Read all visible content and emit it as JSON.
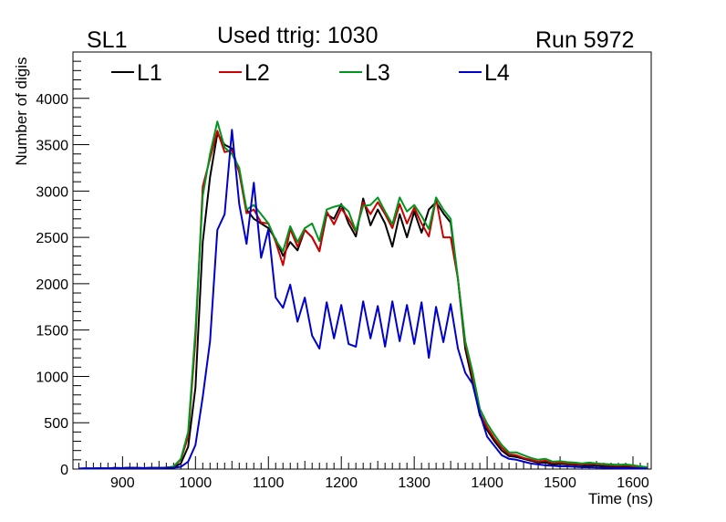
{
  "header": {
    "left": "SL1",
    "center": "Used ttrig: 1030",
    "right": "Run 5972"
  },
  "chart_data": {
    "type": "line",
    "title": "Used ttrig: 1030",
    "xlabel": "Time (ns)",
    "ylabel": "Number of digis",
    "xlim": [
      832,
      1625
    ],
    "ylim": [
      0,
      4500
    ],
    "x_ticks": [
      900,
      1000,
      1100,
      1200,
      1300,
      1400,
      1500,
      1600
    ],
    "y_ticks": [
      0,
      500,
      1000,
      1500,
      2000,
      2500,
      3000,
      3500,
      4000
    ],
    "grid": false,
    "legend_position": "top",
    "x": [
      840,
      850,
      860,
      870,
      880,
      890,
      900,
      910,
      920,
      930,
      940,
      950,
      960,
      970,
      980,
      990,
      1000,
      1010,
      1020,
      1030,
      1040,
      1050,
      1060,
      1070,
      1080,
      1090,
      1100,
      1110,
      1120,
      1130,
      1140,
      1150,
      1160,
      1170,
      1180,
      1190,
      1200,
      1210,
      1220,
      1230,
      1240,
      1250,
      1260,
      1270,
      1280,
      1290,
      1300,
      1310,
      1320,
      1330,
      1340,
      1350,
      1360,
      1370,
      1380,
      1390,
      1400,
      1410,
      1420,
      1430,
      1440,
      1450,
      1460,
      1470,
      1480,
      1490,
      1500,
      1510,
      1520,
      1530,
      1540,
      1550,
      1560,
      1570,
      1580,
      1590,
      1600,
      1610,
      1620
    ],
    "series": [
      {
        "name": "L1",
        "color": "#000000",
        "values": [
          5,
          8,
          6,
          10,
          8,
          12,
          10,
          15,
          12,
          10,
          14,
          12,
          15,
          20,
          60,
          240,
          880,
          2450,
          3150,
          3620,
          3500,
          3460,
          3200,
          2800,
          2700,
          2650,
          2600,
          2480,
          2300,
          2450,
          2360,
          2580,
          2500,
          2350,
          2750,
          2700,
          2860,
          2650,
          2510,
          2920,
          2630,
          2800,
          2650,
          2400,
          2750,
          2500,
          2780,
          2550,
          2800,
          2880,
          2760,
          2660,
          2050,
          1300,
          940,
          580,
          420,
          300,
          200,
          140,
          130,
          110,
          90,
          70,
          70,
          50,
          55,
          50,
          45,
          40,
          35,
          40,
          30,
          30,
          25,
          25,
          20,
          18,
          15
        ]
      },
      {
        "name": "L2",
        "color": "#cc0000",
        "values": [
          5,
          8,
          6,
          10,
          8,
          12,
          10,
          15,
          12,
          10,
          14,
          12,
          15,
          25,
          100,
          350,
          1400,
          3050,
          3350,
          3650,
          3420,
          3440,
          3200,
          2760,
          2800,
          2660,
          2650,
          2450,
          2200,
          2590,
          2400,
          2580,
          2500,
          2350,
          2780,
          2640,
          2810,
          2700,
          2560,
          2880,
          2750,
          2880,
          2750,
          2600,
          2860,
          2650,
          2820,
          2650,
          2510,
          2920,
          2500,
          2500,
          2050,
          1350,
          1000,
          600,
          450,
          330,
          230,
          160,
          150,
          120,
          100,
          80,
          90,
          65,
          70,
          60,
          55,
          50,
          60,
          50,
          45,
          40,
          35,
          40,
          30,
          25,
          15
        ]
      },
      {
        "name": "L3",
        "color": "#00961e",
        "values": [
          5,
          8,
          6,
          10,
          8,
          12,
          10,
          15,
          12,
          10,
          14,
          12,
          15,
          28,
          110,
          400,
          1500,
          2950,
          3400,
          3750,
          3470,
          3400,
          3250,
          2800,
          2850,
          2750,
          2650,
          2470,
          2350,
          2620,
          2450,
          2600,
          2650,
          2460,
          2800,
          2830,
          2850,
          2780,
          2570,
          2840,
          2850,
          2930,
          2780,
          2640,
          2930,
          2780,
          2850,
          2730,
          2590,
          2930,
          2800,
          2700,
          2050,
          1380,
          1050,
          650,
          490,
          370,
          260,
          180,
          180,
          150,
          120,
          100,
          110,
          80,
          85,
          75,
          70,
          60,
          70,
          60,
          55,
          50,
          45,
          50,
          40,
          30,
          20
        ]
      },
      {
        "name": "L4",
        "color": "#0000cc",
        "values": [
          5,
          8,
          6,
          10,
          8,
          12,
          10,
          15,
          12,
          10,
          14,
          12,
          15,
          15,
          25,
          80,
          260,
          780,
          1380,
          2580,
          2750,
          3660,
          2860,
          2430,
          3090,
          2280,
          2590,
          1850,
          1740,
          1990,
          1590,
          1850,
          1440,
          1300,
          1800,
          1410,
          1770,
          1350,
          1320,
          1810,
          1410,
          1760,
          1320,
          1810,
          1380,
          1770,
          1350,
          1800,
          1200,
          1750,
          1370,
          1780,
          1300,
          1040,
          920,
          600,
          350,
          250,
          150,
          110,
          100,
          80,
          60,
          50,
          40,
          35,
          30,
          30,
          25,
          20,
          20,
          18,
          15,
          12,
          10,
          10,
          8,
          8,
          5
        ]
      }
    ]
  }
}
